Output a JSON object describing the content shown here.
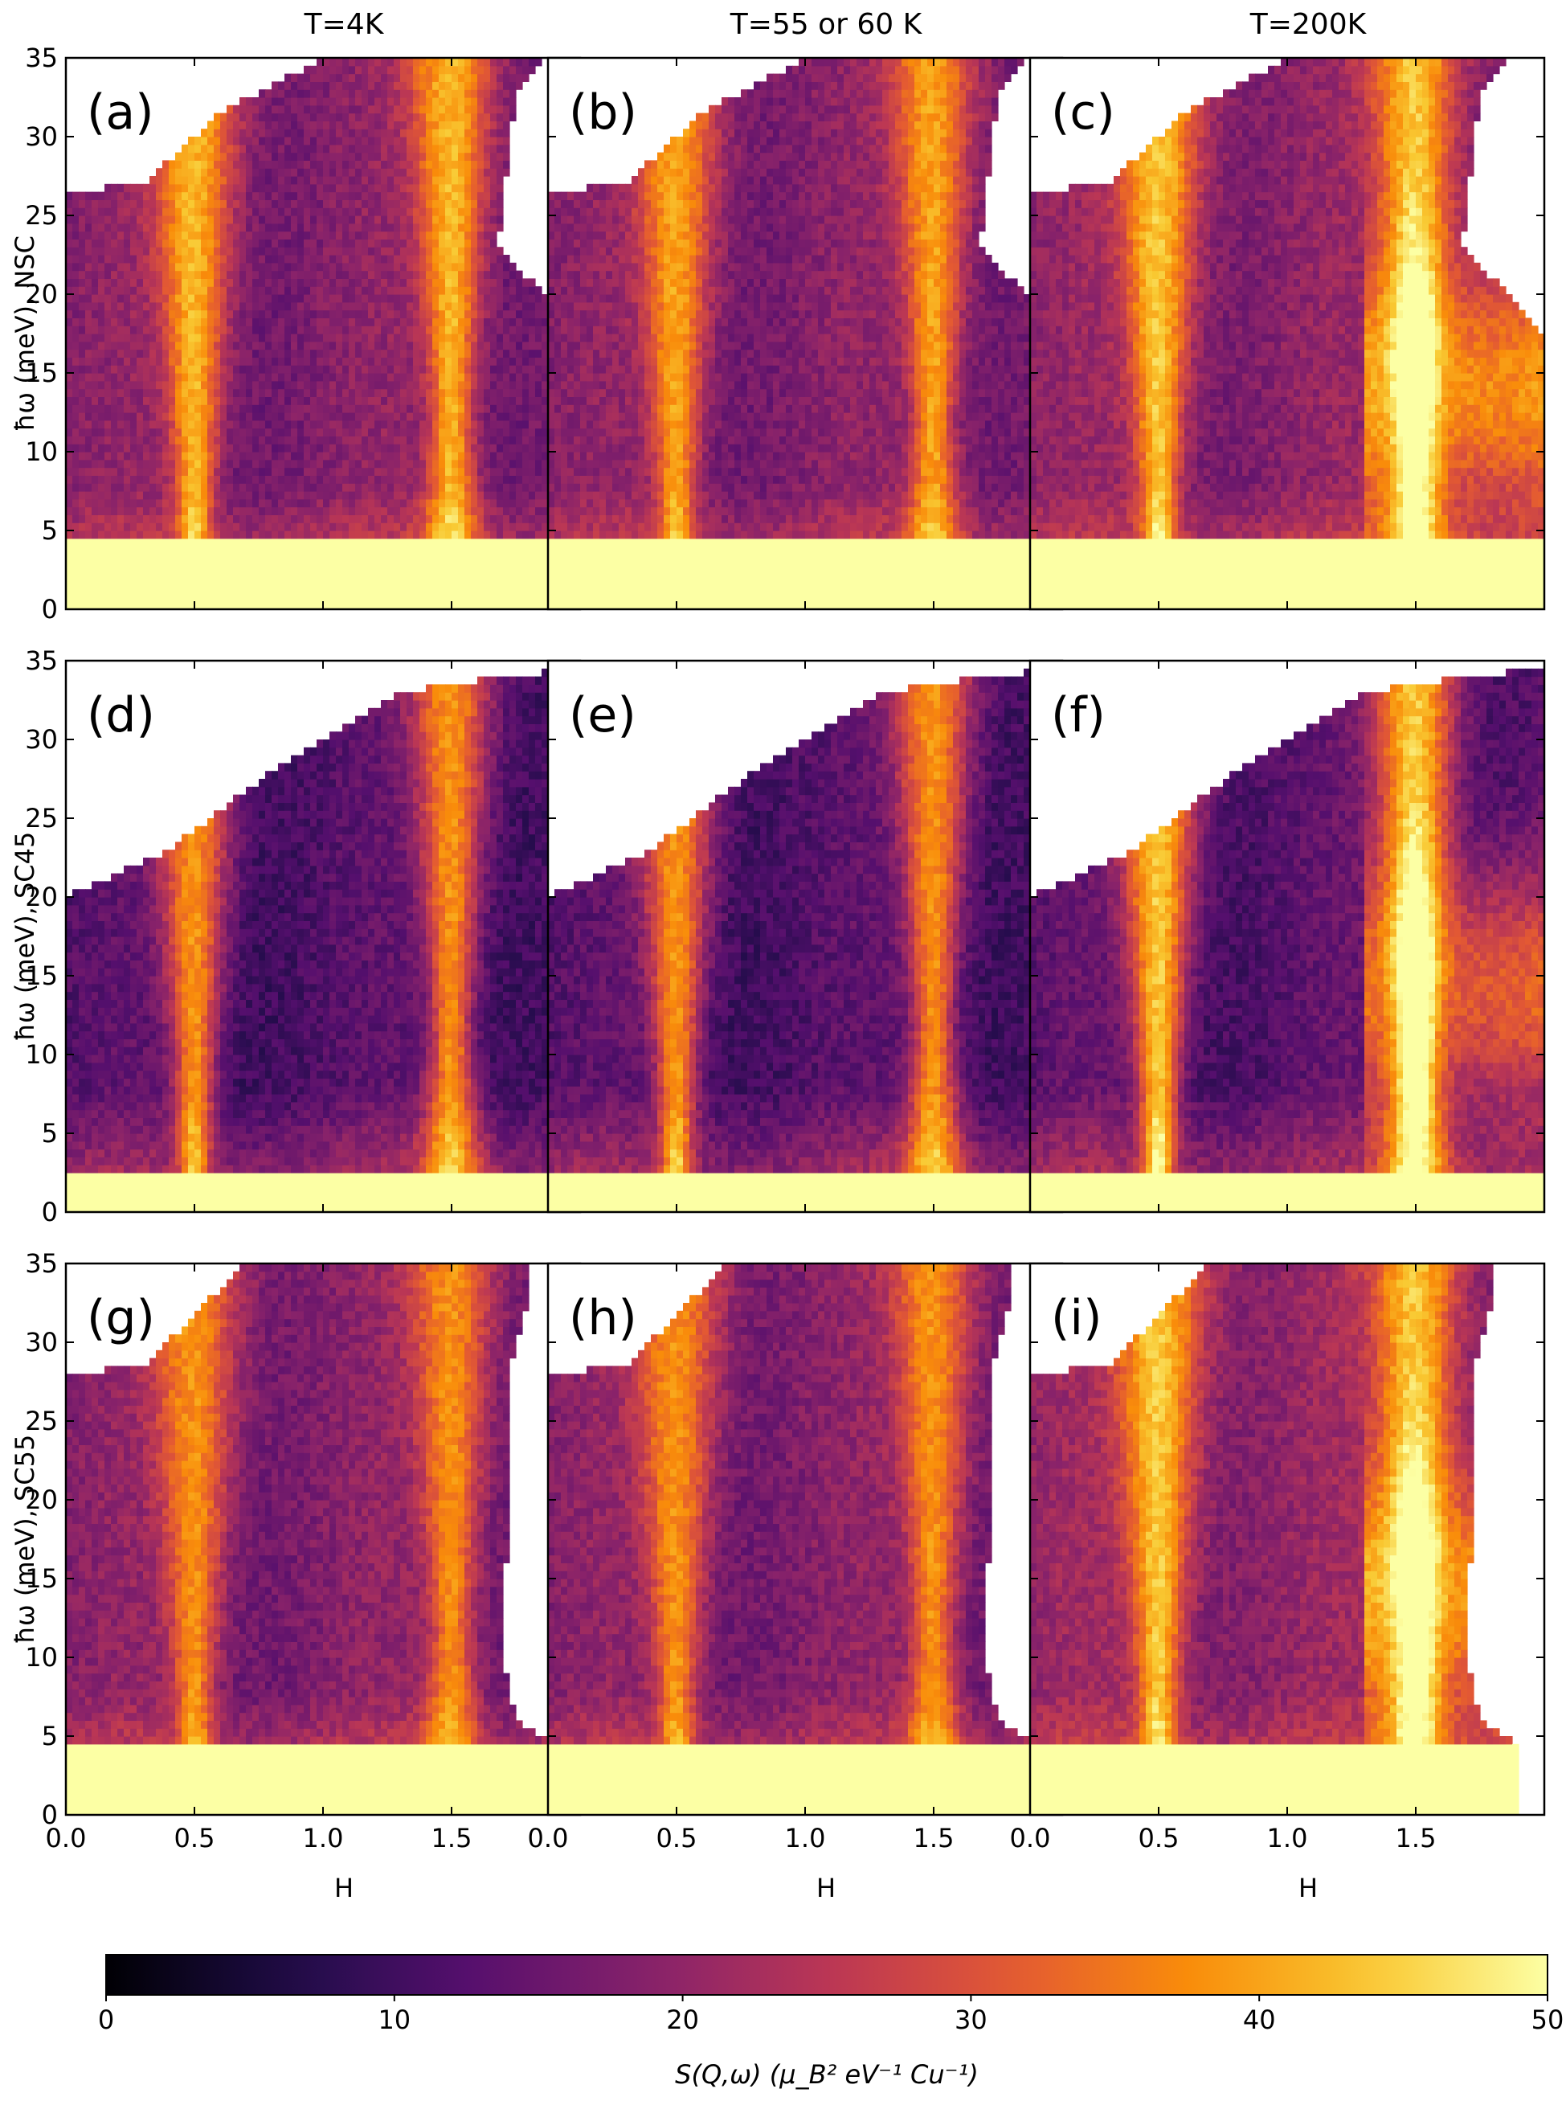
{
  "figure": {
    "column_titles": [
      "T=4K",
      "T=55 or 60 K",
      "T=200K"
    ],
    "row_ylabels": [
      "ħω (meV), NSC",
      "ħω (meV), SC45",
      "ħω (meV), SC55"
    ],
    "xlabel": "H",
    "colorbar_label": "S(Q,ω)  (μ_B² eV⁻¹ Cu⁻¹)"
  },
  "chart_data": {
    "type": "heatmap",
    "colormap": "inferno",
    "xlim": [
      0.0,
      2.0
    ],
    "ylim": [
      0,
      35
    ],
    "x_ticks": [
      0.0,
      0.5,
      1.0,
      1.5
    ],
    "x_tick_labels": [
      "0.0",
      "0.5",
      "1.0",
      "1.5"
    ],
    "y_ticks": [
      0,
      5,
      10,
      15,
      20,
      25,
      30,
      35
    ],
    "y_tick_labels": [
      "0",
      "5",
      "10",
      "15",
      "20",
      "25",
      "30",
      "35"
    ],
    "colorbar": {
      "range": [
        0,
        50
      ],
      "ticks": [
        0,
        10,
        20,
        30,
        40,
        50
      ],
      "tick_labels": [
        "0",
        "10",
        "20",
        "30",
        "40",
        "50"
      ]
    },
    "panels": [
      {
        "label": "(a)",
        "row": 0,
        "col": 0,
        "sample": "NSC",
        "temperature": "4K",
        "elastic_cutoff_meV": 4.3,
        "upper_edge": [
          [
            0.0,
            26.5
          ],
          [
            0.3,
            27.0
          ],
          [
            0.6,
            31.5
          ],
          [
            1.0,
            35.0
          ]
        ],
        "right_edge": [
          [
            2.0,
            17.5
          ],
          [
            1.8,
            21.0
          ],
          [
            1.68,
            23.0
          ],
          [
            1.75,
            33.0
          ],
          [
            1.85,
            35.0
          ]
        ],
        "mode_centers": [
          0.5,
          1.5
        ],
        "mode_intensity": 42,
        "background": 18,
        "feature": "bright column near H=1.5 up to ~22 meV"
      },
      {
        "label": "(b)",
        "row": 0,
        "col": 1,
        "sample": "NSC",
        "temperature": "55 or 60 K",
        "elastic_cutoff_meV": 4.3,
        "upper_edge": [
          [
            0.0,
            26.5
          ],
          [
            0.3,
            27.0
          ],
          [
            0.6,
            31.5
          ],
          [
            1.0,
            35.0
          ]
        ],
        "right_edge": [
          [
            2.0,
            17.5
          ],
          [
            1.8,
            21.0
          ],
          [
            1.68,
            23.0
          ],
          [
            1.75,
            33.0
          ],
          [
            1.85,
            35.0
          ]
        ],
        "mode_centers": [
          0.5,
          1.5
        ],
        "mode_intensity": 40,
        "background": 18,
        "feature": "bright column near H=1.5 up to ~20 meV"
      },
      {
        "label": "(c)",
        "row": 0,
        "col": 2,
        "sample": "NSC",
        "temperature": "200K",
        "elastic_cutoff_meV": 4.3,
        "upper_edge": [
          [
            0.0,
            26.5
          ],
          [
            0.3,
            27.0
          ],
          [
            0.6,
            31.5
          ],
          [
            1.0,
            35.0
          ]
        ],
        "right_edge": [
          [
            2.0,
            17.5
          ],
          [
            1.8,
            21.0
          ],
          [
            1.68,
            23.0
          ],
          [
            1.75,
            33.0
          ],
          [
            1.85,
            35.0
          ]
        ],
        "mode_centers": [
          0.5,
          1.5
        ],
        "mode_intensity": 44,
        "background": 19,
        "feature": "broad bright region H>1.3 between 5 and 22 meV"
      },
      {
        "label": "(d)",
        "row": 1,
        "col": 0,
        "sample": "SC45",
        "temperature": "4K",
        "elastic_cutoff_meV": 2.6,
        "upper_edge": [
          [
            0.0,
            20.0
          ],
          [
            0.4,
            23.0
          ],
          [
            0.8,
            28.0
          ],
          [
            1.3,
            33.0
          ],
          [
            1.7,
            34.0
          ],
          [
            2.0,
            34.5
          ]
        ],
        "right_edge": [],
        "mode_centers": [
          0.5,
          1.5
        ],
        "mode_intensity": 38,
        "background": 12,
        "feature": "bright column near H=1.5 between 5 and 22 meV"
      },
      {
        "label": "(e)",
        "row": 1,
        "col": 1,
        "sample": "SC45",
        "temperature": "55 or 60 K",
        "elastic_cutoff_meV": 2.6,
        "upper_edge": [
          [
            0.0,
            20.0
          ],
          [
            0.4,
            23.0
          ],
          [
            0.8,
            28.0
          ],
          [
            1.3,
            33.0
          ],
          [
            1.7,
            34.0
          ],
          [
            2.0,
            34.5
          ]
        ],
        "right_edge": [],
        "mode_centers": [
          0.5,
          1.5
        ],
        "mode_intensity": 38,
        "background": 12,
        "feature": "bright column near H=1.5 between 5 and 22 meV"
      },
      {
        "label": "(f)",
        "row": 1,
        "col": 2,
        "sample": "SC45",
        "temperature": "200K",
        "elastic_cutoff_meV": 2.6,
        "upper_edge": [
          [
            0.0,
            20.0
          ],
          [
            0.4,
            23.0
          ],
          [
            0.8,
            28.0
          ],
          [
            1.3,
            33.0
          ],
          [
            1.7,
            34.0
          ],
          [
            2.0,
            34.5
          ]
        ],
        "right_edge": [],
        "mode_centers": [
          0.5,
          1.5
        ],
        "mode_intensity": 44,
        "background": 13,
        "feature": "bright region near H=1.5 from 3 to 20 meV"
      },
      {
        "label": "(g)",
        "row": 2,
        "col": 0,
        "sample": "SC55",
        "temperature": "4K",
        "elastic_cutoff_meV": 4.3,
        "upper_edge": [
          [
            0.0,
            28.0
          ],
          [
            0.3,
            28.5
          ],
          [
            0.7,
            35.0
          ]
        ],
        "right_edge": [
          [
            1.9,
            4.5
          ],
          [
            1.75,
            6.0
          ],
          [
            1.7,
            10.0
          ],
          [
            1.72,
            20.0
          ],
          [
            1.72,
            28.0
          ],
          [
            1.8,
            33.0
          ]
        ],
        "mode_centers": [
          0.5,
          1.5
        ],
        "mode_intensity": 38,
        "background": 18,
        "feature": "bright region near H=1.5 between 15 and 24 meV"
      },
      {
        "label": "(h)",
        "row": 2,
        "col": 1,
        "sample": "SC55",
        "temperature": "55 or 60 K",
        "elastic_cutoff_meV": 4.3,
        "upper_edge": [
          [
            0.0,
            28.0
          ],
          [
            0.3,
            28.5
          ],
          [
            0.7,
            35.0
          ]
        ],
        "right_edge": [
          [
            1.9,
            4.5
          ],
          [
            1.75,
            6.0
          ],
          [
            1.7,
            10.0
          ],
          [
            1.72,
            20.0
          ],
          [
            1.72,
            28.0
          ],
          [
            1.8,
            33.0
          ]
        ],
        "mode_centers": [
          0.5,
          1.5
        ],
        "mode_intensity": 38,
        "background": 18,
        "feature": "bright region near H=1.5 between 12 and 24 meV"
      },
      {
        "label": "(i)",
        "row": 2,
        "col": 2,
        "sample": "SC55",
        "temperature": "200K",
        "elastic_cutoff_meV": 4.3,
        "upper_edge": [
          [
            0.0,
            28.0
          ],
          [
            0.3,
            28.5
          ],
          [
            0.7,
            35.0
          ]
        ],
        "right_edge": [
          [
            1.9,
            4.5
          ],
          [
            1.75,
            6.0
          ],
          [
            1.7,
            10.0
          ],
          [
            1.72,
            20.0
          ],
          [
            1.72,
            28.0
          ],
          [
            1.8,
            33.0
          ]
        ],
        "mode_centers": [
          0.5,
          1.5
        ],
        "mode_intensity": 44,
        "background": 20,
        "feature": "broad bright region H>1.3 between 5 and 24 meV"
      }
    ]
  }
}
